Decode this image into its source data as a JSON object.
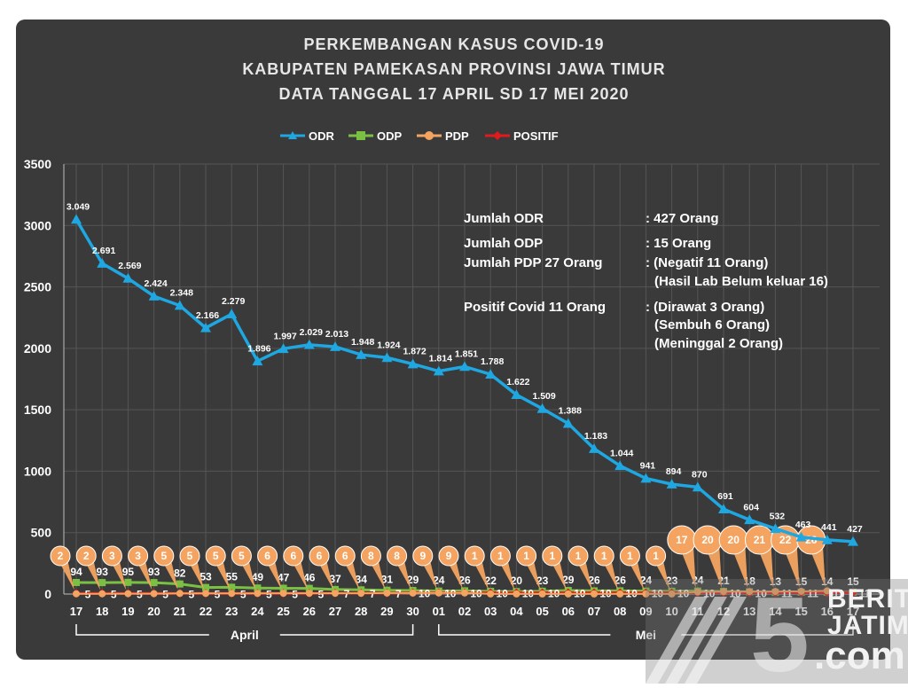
{
  "title_lines": [
    "PERKEMBANGAN KASUS COVID-19",
    "KABUPATEN PAMEKASAN PROVINSI JAWA TIMUR",
    "DATA TANGGAL 17 APRIL SD 17 MEI 2020"
  ],
  "annotations": [
    {
      "label": "Jumlah ODR",
      "value": ": 427 Orang"
    },
    {
      "label": "Jumlah ODP",
      "value": ": 15 Orang"
    },
    {
      "label": "Jumlah PDP 27 Orang",
      "value": ": (Negatif 11 Orang)"
    },
    {
      "label": "",
      "value": "(Hasil Lab Belum keluar 16)"
    },
    {
      "label": "Positif Covid 11 Orang",
      "value": ": (Dirawat 3 Orang)"
    },
    {
      "label": "",
      "value": "(Sembuh 6 Orang)"
    },
    {
      "label": "",
      "value": "(Meninggal 2 Orang)"
    }
  ],
  "watermark": {
    "brand_top": "BERITA",
    "brand_mid": "JATIM",
    "brand_bottom": ".com",
    "mark": "5"
  },
  "colors": {
    "ODR": "#1ea7e1",
    "ODP": "#7ac143",
    "PDP": "#f4a460",
    "POSITIF": "#e31a1c",
    "panel": "#3a3a3a",
    "text": "#ffffff"
  },
  "chart_data": {
    "type": "line",
    "categories": [
      "17",
      "18",
      "19",
      "20",
      "21",
      "22",
      "23",
      "24",
      "25",
      "26",
      "27",
      "28",
      "29",
      "30",
      "01",
      "02",
      "03",
      "04",
      "05",
      "06",
      "07",
      "08",
      "09",
      "10",
      "11",
      "12",
      "13",
      "14",
      "15",
      "16",
      "17"
    ],
    "month_groups": [
      {
        "label": "April",
        "from": 0,
        "to": 13
      },
      {
        "label": "Mei",
        "from": 14,
        "to": 30
      }
    ],
    "ylim": [
      0,
      3500
    ],
    "yticks": [
      0,
      500,
      1000,
      1500,
      2000,
      2500,
      3000,
      3500
    ],
    "grid": true,
    "legend_position": "top",
    "series": [
      {
        "name": "ODR",
        "marker": "triangle",
        "values": [
          3049,
          2691,
          2569,
          2424,
          2348,
          2166,
          2279,
          1896,
          1997,
          2029,
          2013,
          1948,
          1924,
          1872,
          1814,
          1851,
          1788,
          1622,
          1509,
          1388,
          1183,
          1044,
          941,
          894,
          870,
          691,
          604,
          532,
          463,
          441,
          427
        ],
        "labels": [
          "3.049",
          "2.691",
          "2.569",
          "2.424",
          "2.348",
          "2.166",
          "2.279",
          "1.896",
          "1.997",
          "2.029",
          "2.013",
          "1.948",
          "1.924",
          "1.872",
          "1.814",
          "1.851",
          "1.788",
          "1.622",
          "1.509",
          "1.388",
          "1.183",
          "1.044",
          "941",
          "894",
          "870",
          "691",
          "604",
          "532",
          "463",
          "441",
          "427"
        ]
      },
      {
        "name": "ODP",
        "marker": "square",
        "values": [
          94,
          93,
          95,
          93,
          82,
          53,
          55,
          49,
          47,
          46,
          37,
          34,
          31,
          29,
          24,
          26,
          22,
          20,
          23,
          29,
          26,
          26,
          24,
          23,
          24,
          21,
          18,
          13,
          15,
          14,
          15
        ],
        "labels": [
          "94",
          "93",
          "95",
          "93",
          "82",
          "53",
          "55",
          "49",
          "47",
          "46",
          "37",
          "34",
          "31",
          "29",
          "24",
          "26",
          "22",
          "20",
          "23",
          "29",
          "26",
          "26",
          "24",
          "23",
          "24",
          "21",
          "18",
          "13",
          "15",
          "14",
          "15"
        ]
      },
      {
        "name": "PDP",
        "marker": "circle",
        "values": [
          2,
          2,
          3,
          3,
          5,
          5,
          5,
          5,
          6,
          6,
          6,
          6,
          8,
          8,
          9,
          9,
          1,
          1,
          1,
          1,
          1,
          1,
          1,
          1,
          17,
          20,
          20,
          21,
          22,
          26,
          null
        ],
        "labels": [
          "2",
          "2",
          "3",
          "3",
          "5",
          "5",
          "5",
          "5",
          "6",
          "6",
          "6",
          "6",
          "8",
          "8",
          "9",
          "9",
          "1",
          "1",
          "1",
          "1",
          "1",
          "1",
          "1",
          "1",
          "17",
          "20",
          "20",
          "21",
          "22",
          "26",
          ""
        ]
      },
      {
        "name": "POSITIF",
        "marker": "diamond",
        "values": [
          5,
          5,
          5,
          5,
          5,
          5,
          5,
          5,
          5,
          5,
          7,
          7,
          7,
          10,
          10,
          10,
          10,
          10,
          10,
          10,
          10,
          10,
          10,
          10,
          10,
          10,
          10,
          11,
          11,
          11,
          11
        ],
        "labels": [
          "5",
          "5",
          "5",
          "5",
          "5",
          "5",
          "5",
          "5",
          "5",
          "5",
          "7",
          "7",
          "7",
          "10",
          "10",
          "10",
          "10",
          "10",
          "10",
          "10",
          "10",
          "10",
          "10",
          "10",
          "10",
          "10",
          "10",
          "11",
          "11",
          "11",
          "11"
        ]
      }
    ]
  }
}
